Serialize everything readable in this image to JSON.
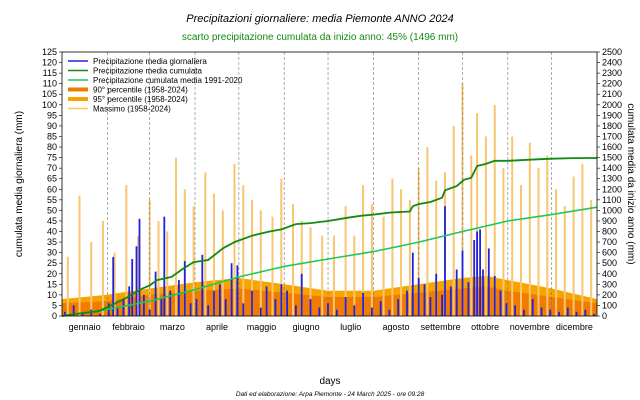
{
  "chart_data": {
    "type": "bar",
    "title": "Precipitazioni giornaliere: media Piemonte ANNO 2024",
    "subtitle": "scarto precipitazione cumulata da inizio anno: 45% (1496 mm)",
    "xlabel": "days",
    "ylabel_left": "cumulata media giornaliera (mm)",
    "ylabel_right": "cumulata media da inizio anno (mm)",
    "ylim_left": [
      0,
      125
    ],
    "yticks_left": [
      "0",
      "5",
      "10",
      "15",
      "20",
      "25",
      "30",
      "35",
      "40",
      "45",
      "50",
      "55",
      "60",
      "65",
      "70",
      "75",
      "80",
      "85",
      "90",
      "95",
      "100",
      "105",
      "110",
      "115",
      "120",
      "125"
    ],
    "ylim_right": [
      0,
      2500
    ],
    "yticks_right": [
      "0",
      "100",
      "200",
      "300",
      "400",
      "500",
      "600",
      "700",
      "800",
      "900",
      "1000",
      "1100",
      "1200",
      "1300",
      "1400",
      "1500",
      "1600",
      "1700",
      "1800",
      "1900",
      "2000",
      "2100",
      "2200",
      "2300",
      "2400",
      "2500"
    ],
    "xlim_days": [
      0,
      366
    ],
    "months": [
      "gennaio",
      "febbraio",
      "marzo",
      "aprile",
      "maggio",
      "giugno",
      "luglio",
      "agosto",
      "settembre",
      "ottobre",
      "novembre",
      "dicembre"
    ],
    "month_start_days": [
      0,
      31,
      60,
      91,
      121,
      152,
      182,
      213,
      244,
      274,
      305,
      335
    ],
    "footer": "Dati ed elaborazione: Arpa Piemonte - 24 March 2025 - ore 09:28",
    "legend_position": "top-left",
    "legend": [
      {
        "label": "Precipitazione media giornaliera",
        "color": "#2222dd",
        "kind": "line"
      },
      {
        "label": "Precipitazione media cumulata",
        "color": "#128a12",
        "kind": "line"
      },
      {
        "label": "Precipitazione cumulata media 1991-2020",
        "color": "#1fc75a",
        "kind": "line"
      },
      {
        "label": "90° percentile (1958-2024)",
        "color": "#f07b00",
        "kind": "thick"
      },
      {
        "label": "95° percentile (1958-2024)",
        "color": "#f7a400",
        "kind": "thick"
      },
      {
        "label": "Massimo (1958-2024)",
        "color": "#f9c56e",
        "kind": "line"
      }
    ],
    "series": [
      {
        "name": "Precipitazione media cumulata",
        "axis": "right",
        "points": [
          [
            0,
            0
          ],
          [
            10,
            20
          ],
          [
            25,
            45
          ],
          [
            35,
            110
          ],
          [
            45,
            180
          ],
          [
            55,
            260
          ],
          [
            60,
            290
          ],
          [
            65,
            340
          ],
          [
            75,
            370
          ],
          [
            82,
            440
          ],
          [
            90,
            510
          ],
          [
            100,
            530
          ],
          [
            110,
            640
          ],
          [
            118,
            700
          ],
          [
            130,
            760
          ],
          [
            142,
            800
          ],
          [
            150,
            820
          ],
          [
            160,
            870
          ],
          [
            170,
            880
          ],
          [
            182,
            900
          ],
          [
            195,
            930
          ],
          [
            205,
            950
          ],
          [
            213,
            960
          ],
          [
            225,
            980
          ],
          [
            238,
            990
          ],
          [
            240,
            1040
          ],
          [
            244,
            1060
          ],
          [
            252,
            1080
          ],
          [
            260,
            1120
          ],
          [
            262,
            1190
          ],
          [
            270,
            1230
          ],
          [
            275,
            1290
          ],
          [
            280,
            1310
          ],
          [
            284,
            1420
          ],
          [
            290,
            1440
          ],
          [
            296,
            1470
          ],
          [
            305,
            1470
          ],
          [
            320,
            1480
          ],
          [
            335,
            1490
          ],
          [
            350,
            1495
          ],
          [
            366,
            1496
          ]
        ]
      },
      {
        "name": "Precipitazione cumulata media 1991-2020",
        "axis": "right",
        "points": [
          [
            0,
            0
          ],
          [
            30,
            60
          ],
          [
            60,
            140
          ],
          [
            91,
            250
          ],
          [
            121,
            370
          ],
          [
            152,
            470
          ],
          [
            182,
            540
          ],
          [
            213,
            610
          ],
          [
            244,
            700
          ],
          [
            274,
            800
          ],
          [
            305,
            900
          ],
          [
            335,
            960
          ],
          [
            366,
            1030
          ]
        ]
      },
      {
        "name": "90° percentile (1958-2024)",
        "axis": "left",
        "points": [
          [
            0,
            6
          ],
          [
            30,
            7
          ],
          [
            60,
            10
          ],
          [
            91,
            12
          ],
          [
            121,
            13
          ],
          [
            152,
            11
          ],
          [
            182,
            9
          ],
          [
            213,
            9
          ],
          [
            244,
            11
          ],
          [
            274,
            13
          ],
          [
            290,
            14
          ],
          [
            305,
            12
          ],
          [
            335,
            9
          ],
          [
            366,
            6
          ]
        ]
      },
      {
        "name": "95° percentile (1958-2024)",
        "axis": "left",
        "points": [
          [
            0,
            8
          ],
          [
            30,
            10
          ],
          [
            60,
            13
          ],
          [
            91,
            16
          ],
          [
            121,
            18
          ],
          [
            152,
            15
          ],
          [
            182,
            12
          ],
          [
            213,
            12
          ],
          [
            244,
            15
          ],
          [
            274,
            18
          ],
          [
            290,
            19
          ],
          [
            305,
            17
          ],
          [
            335,
            13
          ],
          [
            366,
            8
          ]
        ]
      },
      {
        "name": "Massimo (1958-2024)",
        "axis": "left",
        "points": [
          [
            4,
            28
          ],
          [
            12,
            57
          ],
          [
            20,
            35
          ],
          [
            28,
            45
          ],
          [
            36,
            30
          ],
          [
            44,
            62
          ],
          [
            52,
            38
          ],
          [
            60,
            55
          ],
          [
            66,
            45
          ],
          [
            72,
            40
          ],
          [
            78,
            75
          ],
          [
            84,
            60
          ],
          [
            90,
            52
          ],
          [
            98,
            68
          ],
          [
            104,
            58
          ],
          [
            110,
            50
          ],
          [
            118,
            72
          ],
          [
            124,
            62
          ],
          [
            130,
            55
          ],
          [
            136,
            50
          ],
          [
            144,
            47
          ],
          [
            150,
            65
          ],
          [
            158,
            53
          ],
          [
            164,
            45
          ],
          [
            170,
            42
          ],
          [
            178,
            38
          ],
          [
            186,
            38
          ],
          [
            194,
            52
          ],
          [
            200,
            38
          ],
          [
            206,
            62
          ],
          [
            212,
            53
          ],
          [
            220,
            47
          ],
          [
            226,
            65
          ],
          [
            232,
            60
          ],
          [
            238,
            55
          ],
          [
            244,
            70
          ],
          [
            250,
            80
          ],
          [
            256,
            64
          ],
          [
            262,
            68
          ],
          [
            268,
            90
          ],
          [
            274,
            110
          ],
          [
            280,
            76
          ],
          [
            284,
            96
          ],
          [
            290,
            85
          ],
          [
            296,
            100
          ],
          [
            302,
            70
          ],
          [
            308,
            85
          ],
          [
            314,
            62
          ],
          [
            320,
            82
          ],
          [
            326,
            70
          ],
          [
            332,
            76
          ],
          [
            338,
            60
          ],
          [
            344,
            52
          ],
          [
            350,
            66
          ],
          [
            356,
            72
          ],
          [
            362,
            55
          ]
        ]
      },
      {
        "name": "Precipitazione media giornaliera",
        "axis": "left",
        "points": [
          [
            2,
            2
          ],
          [
            8,
            5
          ],
          [
            14,
            1
          ],
          [
            20,
            3
          ],
          [
            26,
            1
          ],
          [
            32,
            6
          ],
          [
            35,
            28
          ],
          [
            38,
            4
          ],
          [
            42,
            8
          ],
          [
            46,
            14
          ],
          [
            48,
            27
          ],
          [
            51,
            33
          ],
          [
            53,
            46
          ],
          [
            56,
            10
          ],
          [
            60,
            3
          ],
          [
            64,
            21
          ],
          [
            68,
            8
          ],
          [
            70,
            47
          ],
          [
            74,
            12
          ],
          [
            80,
            17
          ],
          [
            84,
            26
          ],
          [
            88,
            6
          ],
          [
            92,
            8
          ],
          [
            96,
            29
          ],
          [
            100,
            5
          ],
          [
            104,
            12
          ],
          [
            108,
            15
          ],
          [
            112,
            8
          ],
          [
            116,
            25
          ],
          [
            120,
            24
          ],
          [
            124,
            6
          ],
          [
            130,
            12
          ],
          [
            136,
            4
          ],
          [
            140,
            14
          ],
          [
            146,
            8
          ],
          [
            150,
            15
          ],
          [
            154,
            12
          ],
          [
            160,
            5
          ],
          [
            164,
            20
          ],
          [
            170,
            8
          ],
          [
            176,
            4
          ],
          [
            182,
            6
          ],
          [
            188,
            3
          ],
          [
            194,
            9
          ],
          [
            200,
            5
          ],
          [
            206,
            11
          ],
          [
            212,
            4
          ],
          [
            218,
            7
          ],
          [
            224,
            3
          ],
          [
            230,
            8
          ],
          [
            236,
            12
          ],
          [
            240,
            30
          ],
          [
            244,
            18
          ],
          [
            248,
            15
          ],
          [
            252,
            9
          ],
          [
            256,
            20
          ],
          [
            260,
            10
          ],
          [
            262,
            52
          ],
          [
            266,
            14
          ],
          [
            270,
            22
          ],
          [
            274,
            31
          ],
          [
            278,
            16
          ],
          [
            282,
            36
          ],
          [
            284,
            40
          ],
          [
            286,
            41
          ],
          [
            288,
            22
          ],
          [
            292,
            32
          ],
          [
            296,
            19
          ],
          [
            300,
            12
          ],
          [
            304,
            6
          ],
          [
            310,
            5
          ],
          [
            316,
            3
          ],
          [
            322,
            8
          ],
          [
            328,
            4
          ],
          [
            334,
            3
          ],
          [
            340,
            2
          ],
          [
            346,
            4
          ],
          [
            352,
            2
          ],
          [
            358,
            3
          ],
          [
            364,
            1
          ]
        ]
      }
    ]
  }
}
